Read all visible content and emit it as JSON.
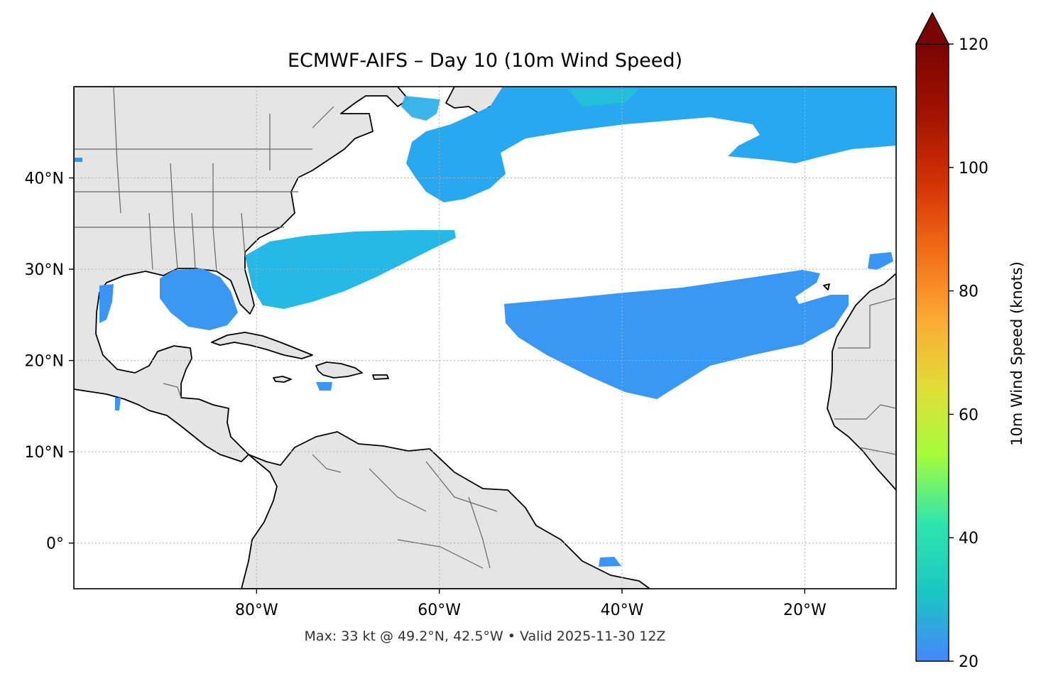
{
  "title": "ECMWF-AIFS – Day 10 (10m Wind Speed)",
  "footer": "Max: 33 kt @ 49.2°N, 42.5°W • Valid 2025-11-30 12Z",
  "map": {
    "extent": {
      "lon_min": -100,
      "lon_max": -10,
      "lat_min": -5,
      "lat_max": 50
    },
    "lon_ticks": [
      {
        "value": -80,
        "label": "80°W"
      },
      {
        "value": -60,
        "label": "60°W"
      },
      {
        "value": -40,
        "label": "40°W"
      },
      {
        "value": -20,
        "label": "20°W"
      }
    ],
    "lat_ticks": [
      {
        "value": 40,
        "label": "40°N"
      },
      {
        "value": 30,
        "label": "30°N"
      },
      {
        "value": 20,
        "label": "20°N"
      },
      {
        "value": 10,
        "label": "10°N"
      },
      {
        "value": 0,
        "label": "0°"
      }
    ],
    "land_color": "#e5e5e5",
    "ocean_color": "#ffffff",
    "gridlines": true
  },
  "colorbar": {
    "label": "10m Wind Speed (knots)",
    "min": 20,
    "max": 120,
    "extend": "max",
    "ticks": [
      {
        "value": 20,
        "label": "20"
      },
      {
        "value": 40,
        "label": "40"
      },
      {
        "value": 60,
        "label": "60"
      },
      {
        "value": 80,
        "label": "80"
      },
      {
        "value": 100,
        "label": "100"
      },
      {
        "value": 120,
        "label": "120"
      }
    ],
    "colormap": [
      "#4686fb",
      "#1ac7c2",
      "#2ee5ae",
      "#a4fc3b",
      "#e1dd37",
      "#fca935",
      "#f26b16",
      "#d23105",
      "#a11201",
      "#7a0403"
    ]
  }
}
